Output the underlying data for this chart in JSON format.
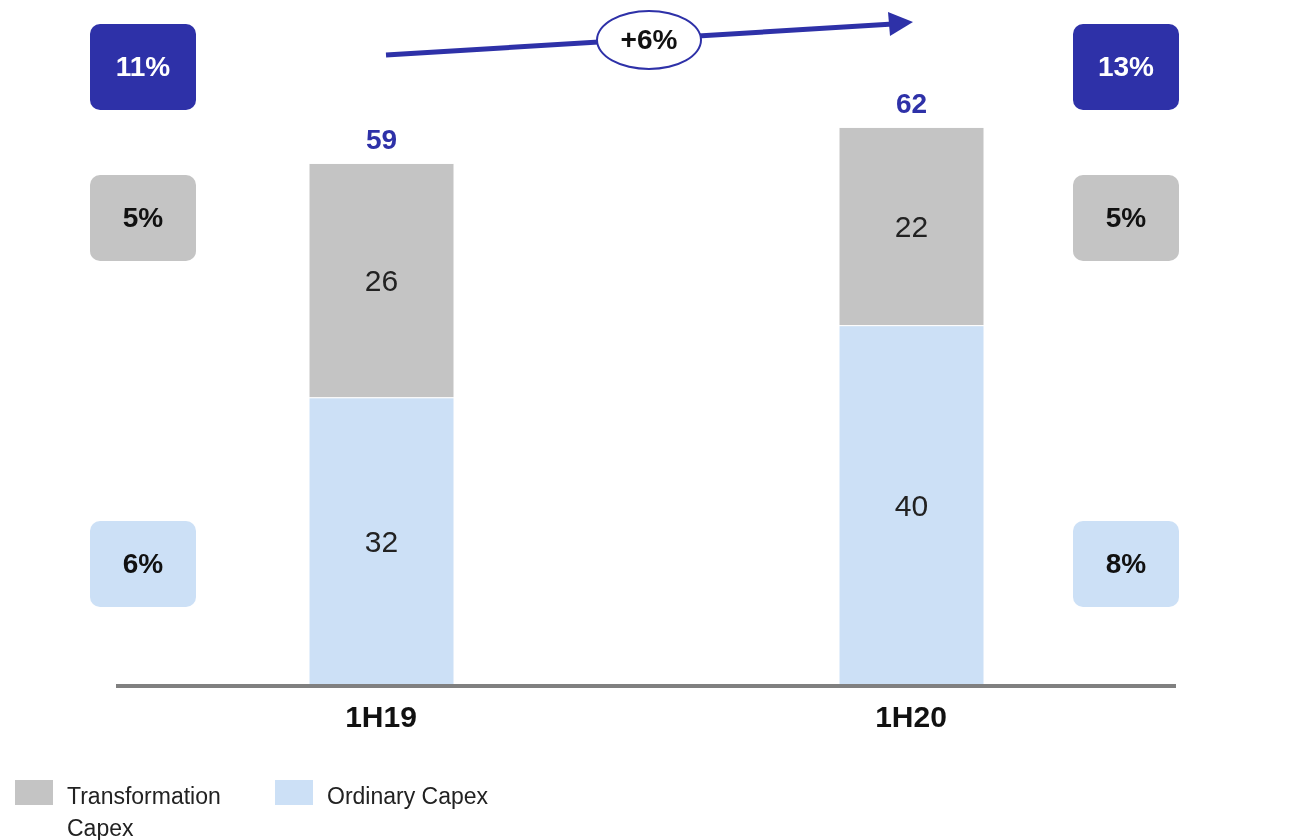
{
  "chart_data": {
    "type": "bar",
    "stacked": true,
    "categories": [
      "1H19",
      "1H20"
    ],
    "series": [
      {
        "name": "Ordinary Capex",
        "color": "#cce0f6",
        "values": [
          32,
          40
        ]
      },
      {
        "name": "Transformation Capex",
        "color": "#c4c4c4",
        "values": [
          26,
          22
        ]
      }
    ],
    "data_labels": true,
    "totals": [
      "59",
      "62"
    ],
    "legend": "bottom left",
    "annotations": [
      "+6%",
      "11%",
      "5%",
      "6%",
      "13%",
      "5%",
      "8%"
    ]
  }
}
